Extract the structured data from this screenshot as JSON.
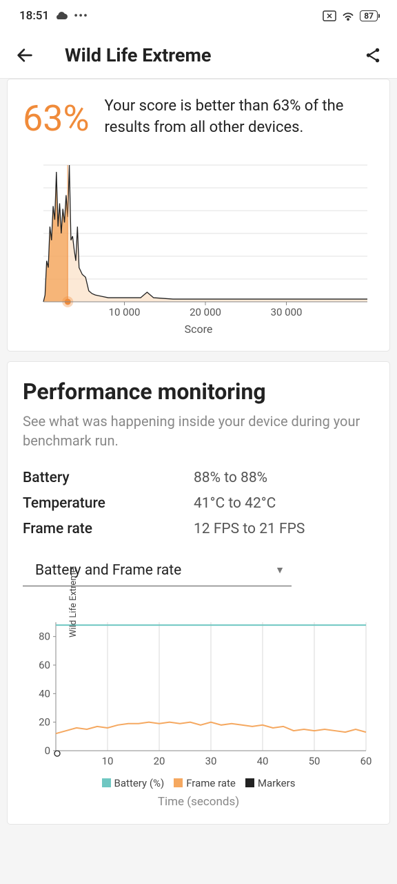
{
  "status": {
    "time": "18:51",
    "battery_pct": "87"
  },
  "header": {
    "title": "Wild Life Extreme"
  },
  "score_card": {
    "percent": "63%",
    "text": "Your score is better than 63% of the results from all other devices.",
    "chart": {
      "type": "area-histogram",
      "xlabel": "Score",
      "xticks": [
        "10 000",
        "20 000",
        "30 000"
      ],
      "xtick_positions": [
        0.25,
        0.5,
        0.75
      ],
      "xlim": [
        0,
        40000
      ],
      "ylim": [
        0,
        100
      ],
      "grid_color": "#e2e2e2",
      "line_color": "#222222",
      "fill_color_left": "#f5a860",
      "fill_color_right": "#fbe0c5",
      "marker_x": 0.075,
      "marker_color": "#f08b3a",
      "points": [
        [
          0.005,
          5
        ],
        [
          0.01,
          30
        ],
        [
          0.015,
          25
        ],
        [
          0.02,
          55
        ],
        [
          0.025,
          45
        ],
        [
          0.03,
          70
        ],
        [
          0.035,
          60
        ],
        [
          0.04,
          95
        ],
        [
          0.045,
          55
        ],
        [
          0.05,
          72
        ],
        [
          0.055,
          50
        ],
        [
          0.06,
          68
        ],
        [
          0.065,
          58
        ],
        [
          0.07,
          78
        ],
        [
          0.075,
          62
        ],
        [
          0.08,
          100
        ],
        [
          0.085,
          45
        ],
        [
          0.09,
          48
        ],
        [
          0.095,
          38
        ],
        [
          0.1,
          30
        ],
        [
          0.105,
          55
        ],
        [
          0.11,
          25
        ],
        [
          0.12,
          20
        ],
        [
          0.13,
          18
        ],
        [
          0.14,
          8
        ],
        [
          0.15,
          6
        ],
        [
          0.16,
          5
        ],
        [
          0.18,
          4
        ],
        [
          0.2,
          3
        ],
        [
          0.25,
          3
        ],
        [
          0.3,
          3
        ],
        [
          0.32,
          7
        ],
        [
          0.34,
          3
        ],
        [
          0.4,
          2
        ],
        [
          0.5,
          2
        ],
        [
          0.6,
          2
        ],
        [
          0.7,
          2
        ],
        [
          0.8,
          2
        ],
        [
          0.9,
          2
        ],
        [
          1.0,
          2
        ]
      ]
    }
  },
  "perf_card": {
    "title": "Performance monitoring",
    "subtitle": "See what was happening inside your device during your benchmark run.",
    "stats": [
      {
        "label": "Battery",
        "value": "88% to 88%"
      },
      {
        "label": "Temperature",
        "value": "41°C to 42°C"
      },
      {
        "label": "Frame rate",
        "value": "12 FPS to 21 FPS"
      }
    ],
    "dropdown": {
      "label": "Battery and Frame rate"
    },
    "chart": {
      "type": "line",
      "ylim": [
        0,
        90
      ],
      "yticks": [
        0,
        20,
        40,
        60,
        80
      ],
      "xlim": [
        0,
        60
      ],
      "xticks": [
        10,
        20,
        30,
        40,
        50,
        60
      ],
      "grid_color": "#d8d8d8",
      "ylabel_vert": "Wild Life Extreme",
      "xlabel": "Time (seconds)",
      "legend": [
        {
          "color": "#6fc7c2",
          "label": "Battery (%)"
        },
        {
          "color": "#f5a860",
          "label": "Frame rate"
        },
        {
          "color": "#222222",
          "label": "Markers"
        }
      ],
      "series": {
        "battery": {
          "color": "#6fc7c2",
          "width": 2,
          "points": [
            [
              0,
              88
            ],
            [
              60,
              88
            ]
          ]
        },
        "framerate": {
          "color": "#f5a860",
          "width": 2,
          "points": [
            [
              0,
              12
            ],
            [
              2,
              14
            ],
            [
              4,
              16
            ],
            [
              6,
              15
            ],
            [
              8,
              17
            ],
            [
              10,
              16
            ],
            [
              12,
              18
            ],
            [
              14,
              19
            ],
            [
              16,
              19
            ],
            [
              18,
              20
            ],
            [
              20,
              19
            ],
            [
              22,
              20
            ],
            [
              24,
              19
            ],
            [
              26,
              20
            ],
            [
              28,
              18
            ],
            [
              30,
              20
            ],
            [
              32,
              18
            ],
            [
              34,
              19
            ],
            [
              36,
              18
            ],
            [
              38,
              17
            ],
            [
              40,
              18
            ],
            [
              42,
              16
            ],
            [
              44,
              17
            ],
            [
              46,
              14
            ],
            [
              48,
              15
            ],
            [
              50,
              14
            ],
            [
              52,
              15
            ],
            [
              54,
              14
            ],
            [
              56,
              13
            ],
            [
              58,
              15
            ],
            [
              60,
              13
            ]
          ]
        }
      },
      "marker": {
        "x": 0.5,
        "color": "#222222"
      }
    }
  }
}
